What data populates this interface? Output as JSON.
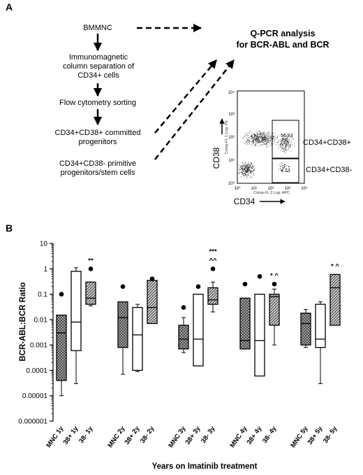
{
  "panel_a": {
    "letter": "A",
    "flow_steps": [
      "BMMNC",
      "Immunomagnetic\ncolumn separation of\nCD34+ cells",
      "Flow cytometry sorting",
      "CD34+CD38+ committed\nprogenitors",
      "CD34+CD38- primitive\nprogenitors/stem cells"
    ],
    "qpcr_title_line1": "Q-PCR analysis",
    "qpcr_title_line2": "for BCR-ABL and BCR",
    "facs": {
      "ylabel": "CD38",
      "xlabel": "CD34",
      "inner_ylabel": "Comp-FL 1 Log: PE",
      "inner_xlabel": "Comp-FL 2 Log: APC",
      "upper_gate_value": "56.83",
      "lower_gate_value": "4.13",
      "upper_gate_label": "CD34+CD38+",
      "lower_gate_label": "CD34+CD38-",
      "tick_labels": [
        "10⁰",
        "10¹",
        "10²",
        "10³",
        "10⁴"
      ]
    }
  },
  "panel_b": {
    "letter": "B",
    "xlabel": "Years on Imatinib treatment"
  },
  "chart_data": {
    "type": "box",
    "ylabel": "BCR-ABL:BCR Ratio",
    "xlabel": "Years on Imatinib treatment",
    "yscale": "log",
    "ylim": [
      1e-06,
      10
    ],
    "y_tick_labels": [
      "10",
      "1",
      "0.1",
      "0.01",
      "0.001",
      "0.0001",
      "0.00001",
      "0.000001"
    ],
    "categories": [
      "MNC 1y",
      "38+ 1y",
      "38- 1y",
      "MNC 2y",
      "38+ 2y",
      "38- 2y",
      "MNC 3y",
      "38+ 3y",
      "38- 3y",
      "MNC 4y",
      "38+ 4y",
      "38- 4y",
      "MNC 5y",
      "38+ 5y",
      "38- 5y"
    ],
    "boxes": [
      {
        "label": "MNC 1y",
        "fill": "crosshatch",
        "min": 1e-05,
        "q1": 4e-05,
        "median": 0.003,
        "q3": 0.015,
        "max": 0.015,
        "outliers": [
          0.1
        ]
      },
      {
        "label": "38+ 1y",
        "fill": "white",
        "min": 3e-05,
        "q1": 0.0006,
        "median": 0.008,
        "q3": 0.8,
        "max": 1.1,
        "outliers": []
      },
      {
        "label": "38- 1y",
        "fill": "diagonal",
        "min": 0.035,
        "q1": 0.04,
        "median": 0.07,
        "q3": 0.3,
        "max": 0.3,
        "outliers": [
          1.0
        ]
      },
      {
        "label": "MNC 2y",
        "fill": "crosshatch",
        "min": 7e-05,
        "q1": 0.0008,
        "median": 0.012,
        "q3": 0.05,
        "max": 0.05,
        "outliers": [
          0.2
        ]
      },
      {
        "label": "38+ 2y",
        "fill": "white",
        "min": 9e-05,
        "q1": 0.0001,
        "median": 0.0025,
        "q3": 0.03,
        "max": 0.04,
        "outliers": []
      },
      {
        "label": "38- 2y",
        "fill": "diagonal",
        "min": 0.007,
        "q1": 0.007,
        "median": 0.03,
        "q3": 0.35,
        "max": 0.45,
        "outliers": [
          0.4
        ]
      },
      {
        "label": "MNC 3y",
        "fill": "crosshatch",
        "min": 0.0005,
        "q1": 0.0007,
        "median": 0.0017,
        "q3": 0.006,
        "max": 0.012,
        "outliers": [
          0.03
        ]
      },
      {
        "label": "38+ 3y",
        "fill": "white",
        "min": 0.00015,
        "q1": 0.00015,
        "median": 0.0017,
        "q3": 0.1,
        "max": 0.1,
        "outliers": [
          0.2
        ]
      },
      {
        "label": "38- 3y",
        "fill": "diagonal",
        "min": 0.02,
        "q1": 0.04,
        "median": 0.06,
        "q3": 0.18,
        "max": 0.3,
        "outliers": [
          1.0
        ]
      },
      {
        "label": "MNC 4y",
        "fill": "crosshatch",
        "min": 0.0007,
        "q1": 0.0007,
        "median": 0.0015,
        "q3": 0.07,
        "max": 0.07,
        "outliers": [
          0.25
        ]
      },
      {
        "label": "38+ 4y",
        "fill": "white",
        "min": 6e-05,
        "q1": 6e-05,
        "median": 0.0015,
        "q3": 0.1,
        "max": 0.1,
        "outliers": [
          0.5
        ]
      },
      {
        "label": "38- 4y",
        "fill": "diagonal",
        "min": 0.001,
        "q1": 0.006,
        "median": 0.08,
        "q3": 0.1,
        "max": 0.16,
        "outliers": [
          0.25
        ]
      },
      {
        "label": "MNC 5y",
        "fill": "crosshatch",
        "min": 0.0008,
        "q1": 0.001,
        "median": 0.007,
        "q3": 0.018,
        "max": 0.025,
        "outliers": []
      },
      {
        "label": "38+ 5y",
        "fill": "white",
        "min": 3e-05,
        "q1": 0.0008,
        "median": 0.0017,
        "q3": 0.04,
        "max": 0.05,
        "outliers": []
      },
      {
        "label": "38- 5y",
        "fill": "diagonal",
        "min": 0.006,
        "q1": 0.006,
        "median": 0.18,
        "q3": 0.6,
        "max": 0.6,
        "outliers": []
      }
    ],
    "annotations": [
      {
        "category": "38- 1y",
        "text": "**"
      },
      {
        "category": "38- 3y",
        "text": "***"
      },
      {
        "category": "38- 3y",
        "text": "^^"
      },
      {
        "category": "38- 4y",
        "text": "* ^"
      },
      {
        "category": "38- 5y",
        "text": "* ^"
      }
    ]
  }
}
